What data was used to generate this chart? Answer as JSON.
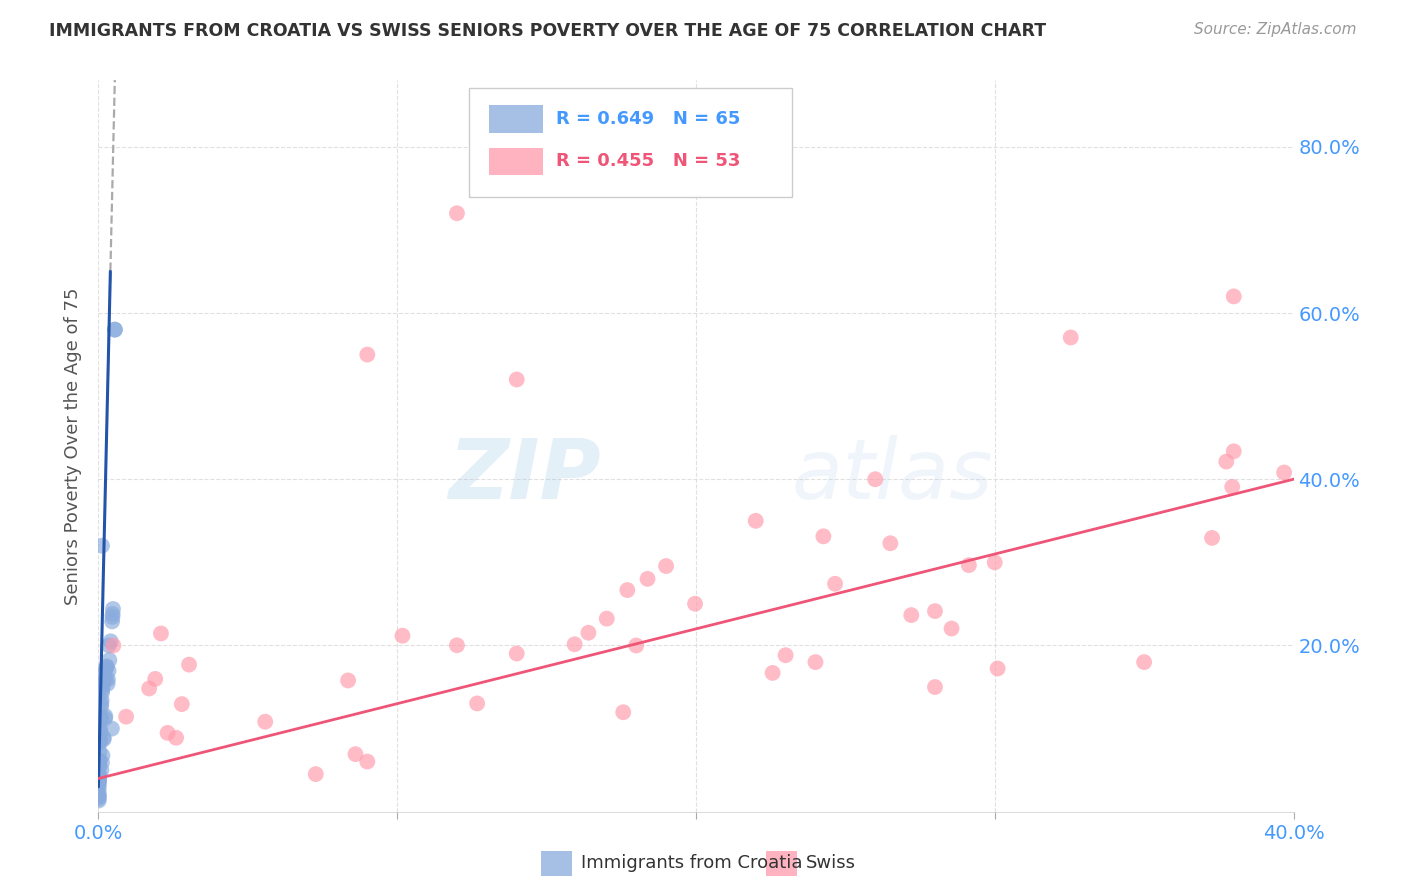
{
  "title": "IMMIGRANTS FROM CROATIA VS SWISS SENIORS POVERTY OVER THE AGE OF 75 CORRELATION CHART",
  "source": "Source: ZipAtlas.com",
  "ylabel": "Seniors Poverty Over the Age of 75",
  "xlim": [
    0.0,
    0.4
  ],
  "ylim": [
    0.0,
    0.88
  ],
  "blue_R": 0.649,
  "blue_N": 65,
  "pink_R": 0.455,
  "pink_N": 53,
  "blue_color": "#88AADD",
  "pink_color": "#FF99AA",
  "blue_line_color": "#2255AA",
  "pink_line_color": "#EE5577",
  "legend_blue_label": "Immigrants from Croatia",
  "legend_pink_label": "Swiss",
  "watermark_zip": "ZIP",
  "watermark_atlas": "atlas",
  "background_color": "#FFFFFF",
  "grid_color": "#DDDDDD",
  "tick_color": "#4499FF",
  "ylabel_color": "#555555",
  "title_color": "#333333",
  "source_color": "#999999"
}
